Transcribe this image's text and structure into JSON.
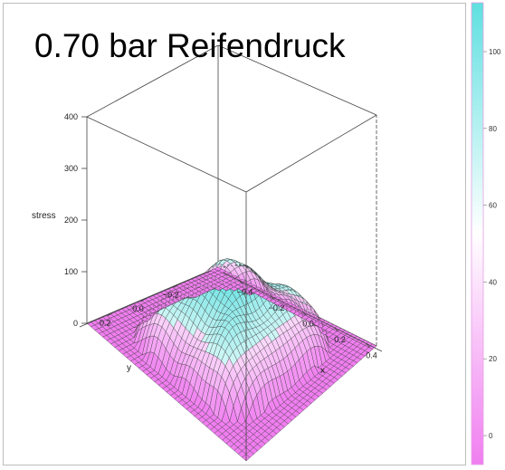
{
  "chart_data": {
    "type": "surface3d",
    "title": "0.70 bar Reifendruck",
    "zlabel": "stress",
    "xlabel": "x",
    "ylabel": "y",
    "xlim": [
      -0.5,
      0.5
    ],
    "ylim": [
      -0.4,
      0.4
    ],
    "zlim": [
      0,
      400
    ],
    "x_ticks": [
      -0.4,
      -0.2,
      0.0,
      0.2,
      0.4
    ],
    "x_tick_labels": [
      "−0.4",
      "−0.2",
      "0.0",
      "0.2",
      "0.4"
    ],
    "y_ticks": [
      -0.2,
      0.0,
      0.2
    ],
    "y_tick_labels": [
      "−0.2",
      "0.0",
      "0.2"
    ],
    "z_ticks": [
      0,
      100,
      200,
      300,
      400
    ],
    "z_tick_labels": [
      "0",
      "100",
      "200",
      "300",
      "400"
    ],
    "peak_stress": 140,
    "colorbar": {
      "ticks": [
        0,
        20,
        40,
        60,
        80,
        100
      ],
      "tick_labels": [
        "0",
        "20",
        "40",
        "60",
        "80",
        "100"
      ],
      "low_color": "#f07ef0",
      "high_color": "#5fe0e0"
    },
    "grid": false,
    "legend": "colorbar right"
  }
}
